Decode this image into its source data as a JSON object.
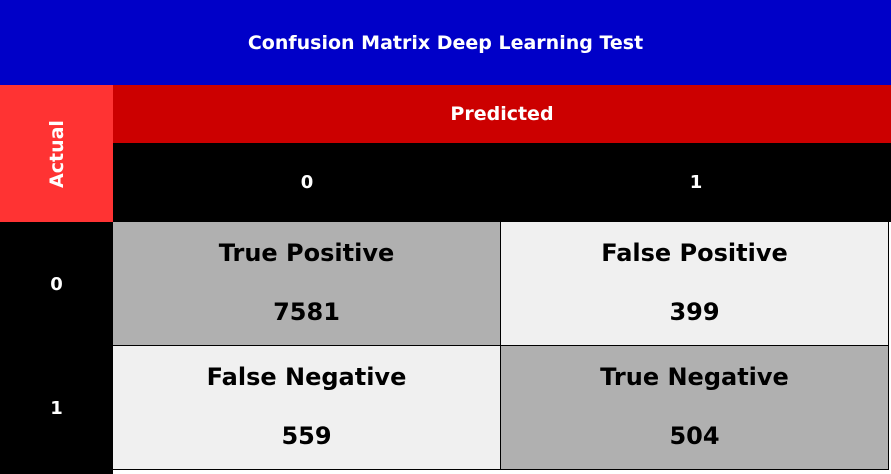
{
  "chart_data": {
    "type": "table",
    "title": "Confusion Matrix Deep Learning Test",
    "row_axis_label": "Actual",
    "col_axis_label": "Predicted",
    "row_labels": [
      "0",
      "1"
    ],
    "col_labels": [
      "0",
      "1"
    ],
    "cells": [
      [
        {
          "label": "True Positive",
          "value": "7581"
        },
        {
          "label": "False Positive",
          "value": "399"
        }
      ],
      [
        {
          "label": "False Negative",
          "value": "559"
        },
        {
          "label": "True Negative",
          "value": "504"
        }
      ]
    ]
  },
  "colors": {
    "title_bg": "#0000c8",
    "actual_bg": "#ff3333",
    "predicted_bg": "#cc0000",
    "header_bg": "#000000",
    "diagonal_cell_bg": "#b0b0b0",
    "off_diagonal_cell_bg": "#f0f0f0"
  }
}
